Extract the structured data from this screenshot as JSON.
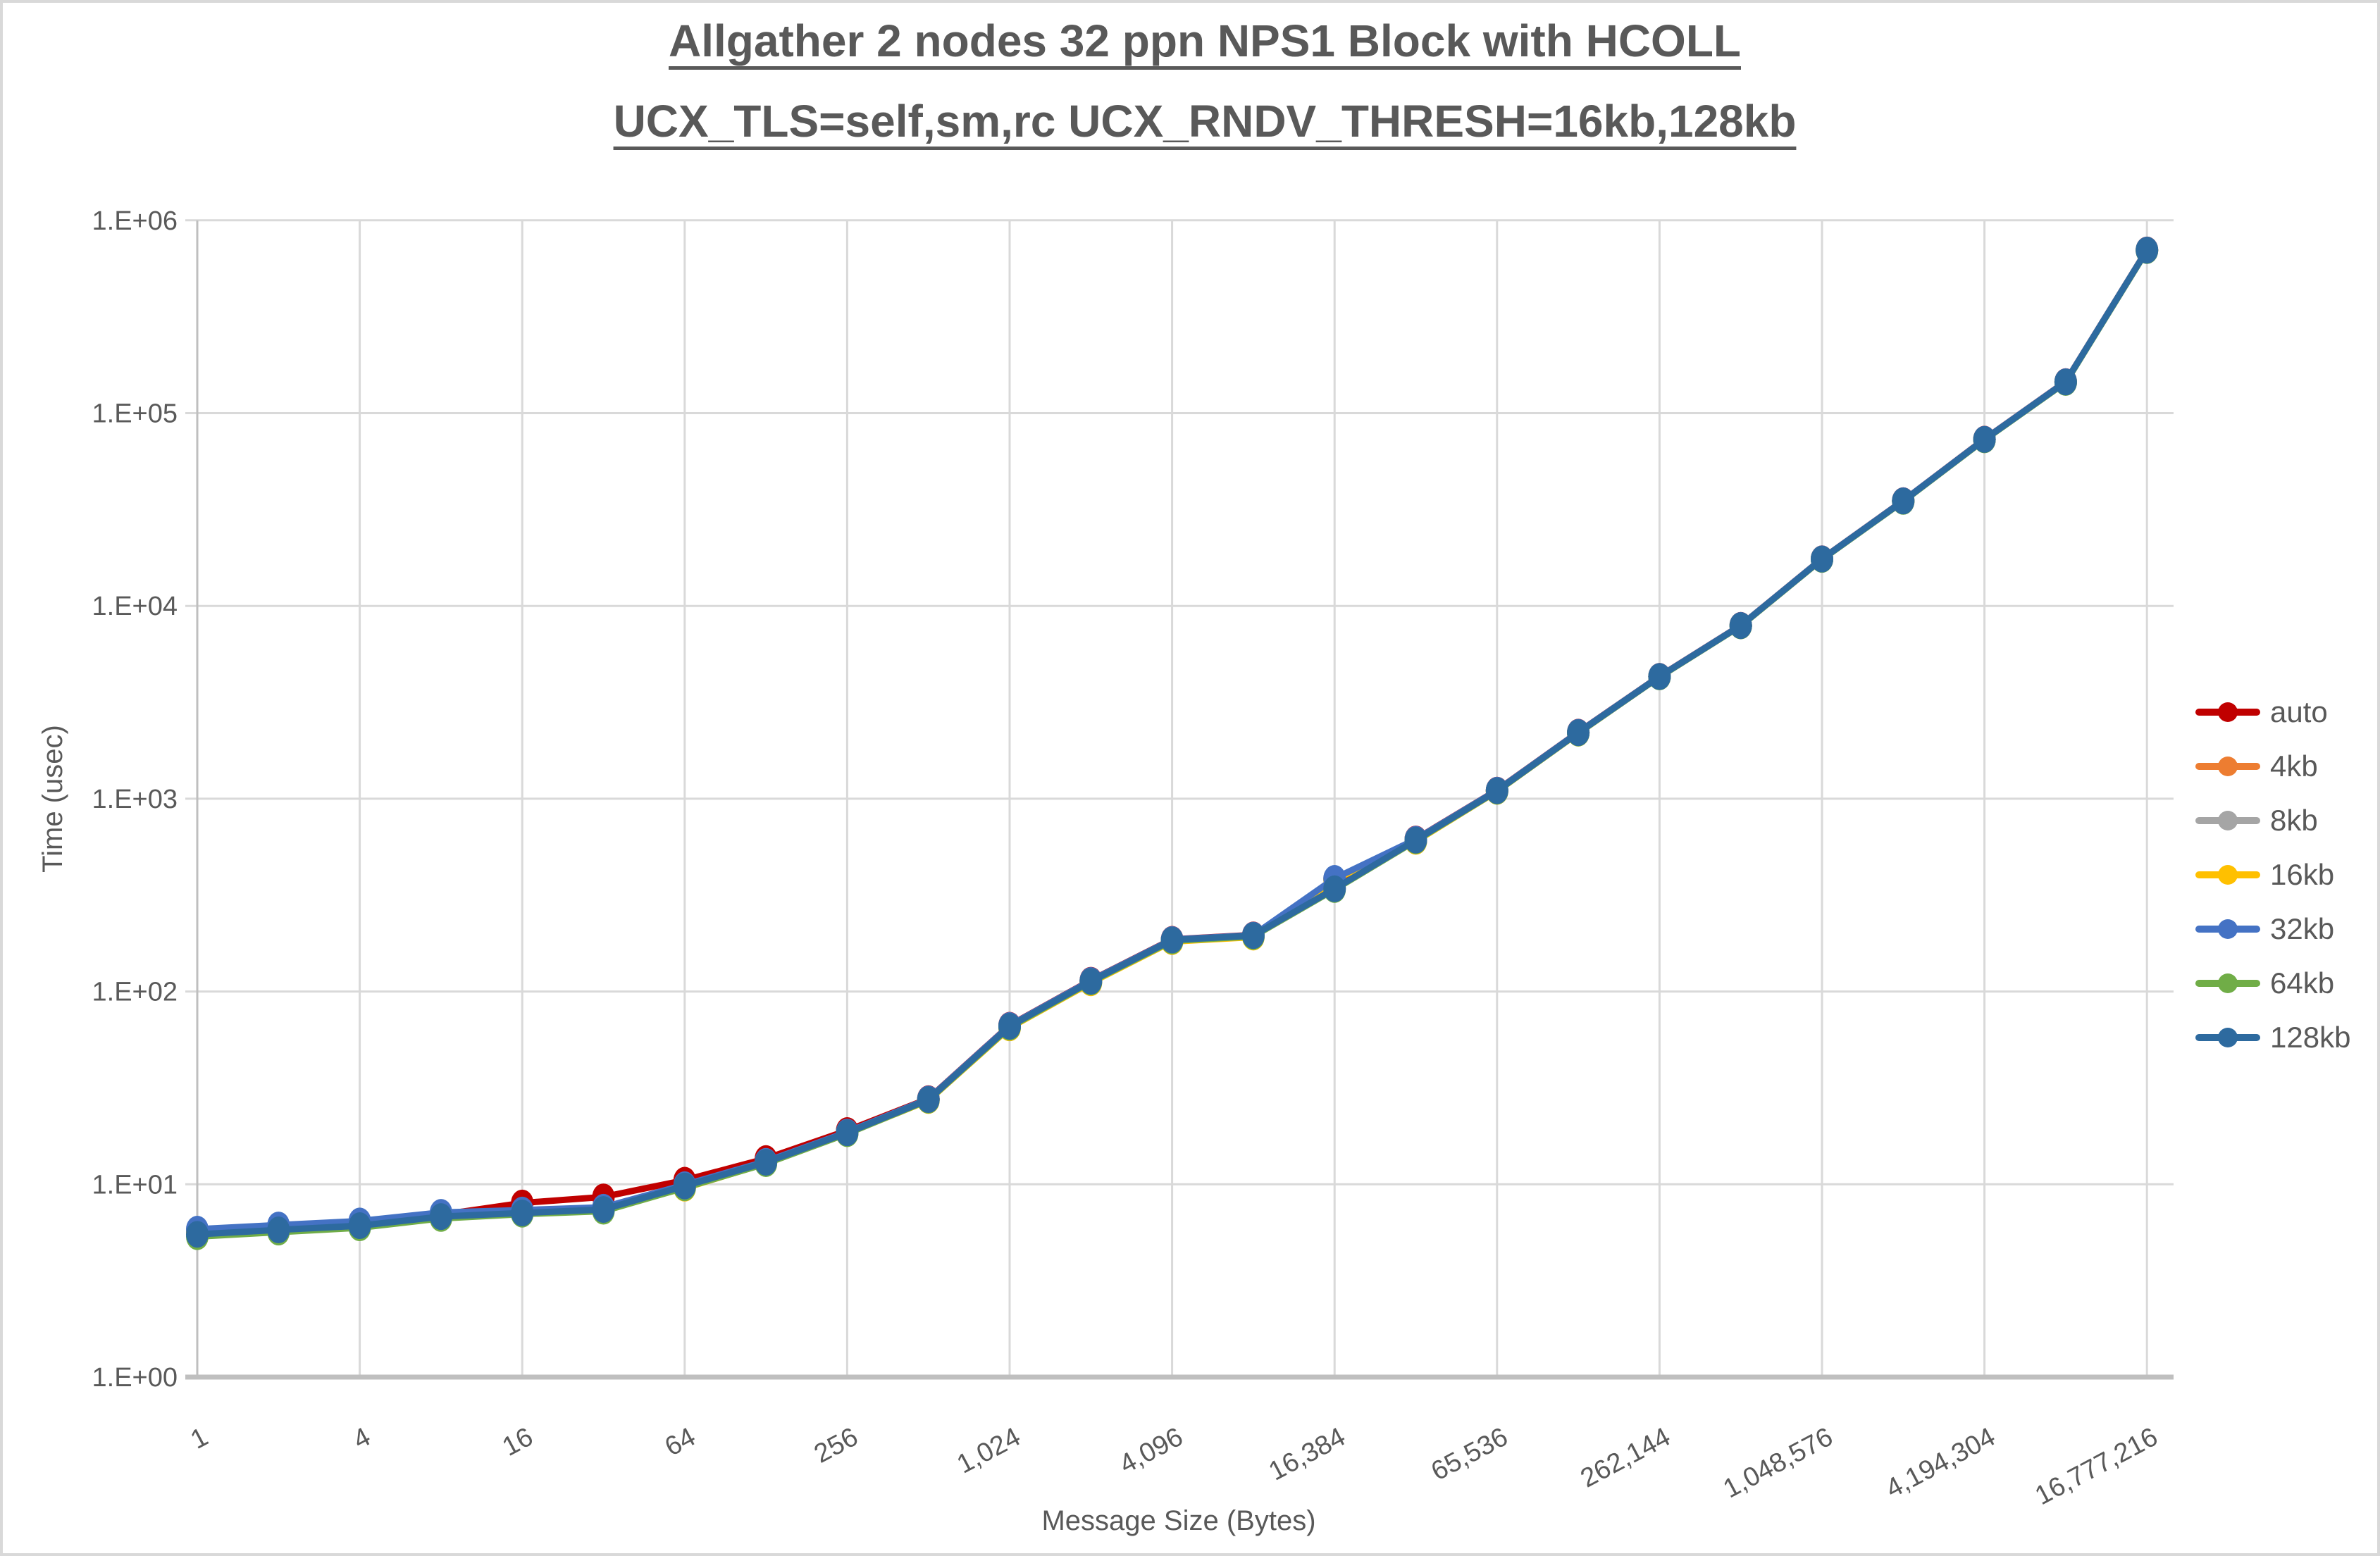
{
  "title": {
    "line1": "Allgather 2 nodes 32 ppn NPS1 Block with HCOLL",
    "line2": "UCX_TLS=self,sm,rc UCX_RNDV_THRESH=16kb,128kb"
  },
  "colors": {
    "text": "#595959",
    "gridline": "#D9D9D9",
    "axis_line": "#BFBFBF",
    "frame_border": "#D9D9D9",
    "background": "#FFFFFF"
  },
  "chart_data": {
    "type": "line",
    "title": "Allgather 2 nodes 32 ppn NPS1 Block with HCOLL UCX_TLS=self,sm,rc UCX_RNDV_THRESH=16kb,128kb",
    "xlabel": "Message Size (Bytes)",
    "ylabel": "Time (usec)",
    "x_scale": "log2",
    "y_scale": "log10",
    "ylim": [
      1,
      1000000
    ],
    "grid": true,
    "legend_position": "right",
    "y_tick_labels": [
      "1.E+00",
      "1.E+01",
      "1.E+02",
      "1.E+03",
      "1.E+04",
      "1.E+05",
      "1.E+06"
    ],
    "x_tick_labels": [
      "1",
      "4",
      "16",
      "64",
      "256",
      "1,024",
      "4,096",
      "16,384",
      "65,536",
      "262,144",
      "1,048,576",
      "4,194,304",
      "16,777,216"
    ],
    "categories": [
      1,
      2,
      4,
      8,
      16,
      32,
      64,
      128,
      256,
      512,
      1024,
      2048,
      4096,
      8192,
      16384,
      32768,
      65536,
      131072,
      262144,
      524288,
      1048576,
      2097152,
      4194304,
      8388608,
      16777216
    ],
    "series": [
      {
        "name": "auto",
        "color": "#C00000",
        "values": [
          5.65,
          5.95,
          6.25,
          6.95,
          8.0,
          8.6,
          10.5,
          13.6,
          19.0,
          27.8,
          66.8,
          114.4,
          186.5,
          196.5,
          345,
          618,
          1108,
          2214,
          4314,
          7930,
          17560,
          35150,
          73300,
          145700,
          702000
        ]
      },
      {
        "name": "4kb",
        "color": "#ED7D31",
        "values": [
          5.75,
          6.05,
          6.35,
          7.05,
          7.25,
          7.55,
          9.75,
          12.95,
          18.55,
          27.6,
          66.2,
          113.4,
          184.5,
          194.5,
          383,
          613,
          1102,
          2204,
          4304,
          7905,
          17520,
          35050,
          73100,
          145200,
          700400
        ]
      },
      {
        "name": "8kb",
        "color": "#A5A5A5",
        "values": [
          5.7,
          6.0,
          6.3,
          7.0,
          7.2,
          7.5,
          9.7,
          12.9,
          18.45,
          27.4,
          65.8,
          112.6,
          184.0,
          194.0,
          382,
          612,
          1100,
          2200,
          4300,
          7900,
          17500,
          35000,
          73000,
          145000,
          700000
        ]
      },
      {
        "name": "16kb",
        "color": "#FFC000",
        "values": [
          5.6,
          5.9,
          6.2,
          6.9,
          7.15,
          7.45,
          9.55,
          12.85,
          18.35,
          27.2,
          64.8,
          111.0,
          181.5,
          191.5,
          380,
          601,
          1092,
          2188,
          4290,
          7882,
          17455,
          34910,
          72820,
          144550,
          698200
        ]
      },
      {
        "name": "32kb",
        "color": "#4472C4",
        "values": [
          5.85,
          6.15,
          6.45,
          7.15,
          7.35,
          7.6,
          9.95,
          13.15,
          18.65,
          27.7,
          66.6,
          114.0,
          186.0,
          196.0,
          386,
          616,
          1106,
          2210,
          4310,
          7920,
          17545,
          35120,
          73200,
          145500,
          701200
        ]
      },
      {
        "name": "64kb",
        "color": "#70AD47",
        "values": [
          5.35,
          5.65,
          5.95,
          6.65,
          7.0,
          7.25,
          9.6,
          12.8,
          18.3,
          27.3,
          65.3,
          112.0,
          183.0,
          193.0,
          338,
          605,
          1094,
          2190,
          4285,
          7875,
          17430,
          34860,
          72700,
          144300,
          697000
        ]
      },
      {
        "name": "128kb",
        "color": "#2D6A9F",
        "values": [
          5.5,
          5.8,
          6.1,
          6.8,
          7.1,
          7.4,
          9.8,
          13.0,
          18.5,
          27.5,
          66.0,
          113.0,
          185.0,
          195.0,
          341,
          610,
          1100,
          2200,
          4300,
          7900,
          17500,
          35000,
          73000,
          145000,
          700000
        ]
      }
    ]
  }
}
